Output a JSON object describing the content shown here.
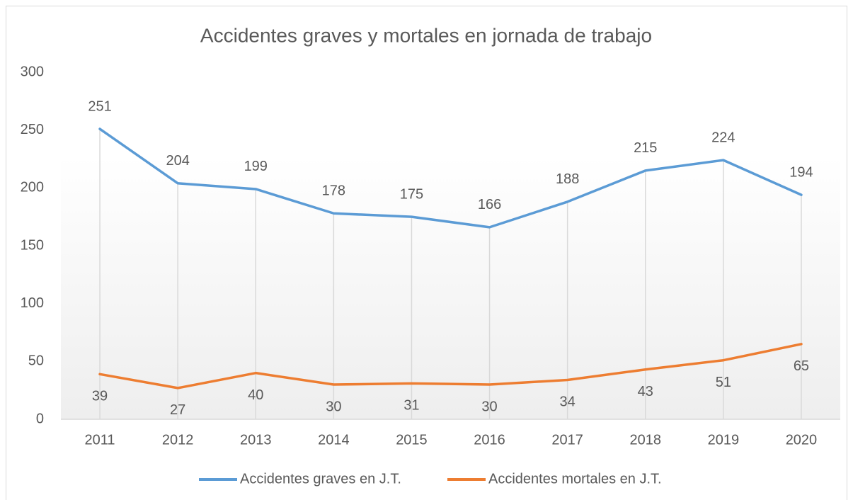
{
  "chart_data": {
    "type": "line",
    "title": "Accidentes graves y mortales en jornada de trabajo",
    "categories": [
      "2011",
      "2012",
      "2013",
      "2014",
      "2015",
      "2016",
      "2017",
      "2018",
      "2019",
      "2020"
    ],
    "series": [
      {
        "name": "Accidentes graves en J.T.",
        "color": "#5b9bd5",
        "values": [
          251,
          204,
          199,
          178,
          175,
          166,
          188,
          215,
          224,
          194
        ]
      },
      {
        "name": "Accidentes mortales en J.T.",
        "color": "#ed7d31",
        "values": [
          39,
          27,
          40,
          30,
          31,
          30,
          34,
          43,
          51,
          65
        ]
      }
    ],
    "ylim": [
      0,
      300
    ],
    "yticks": [
      0,
      50,
      100,
      150,
      200,
      250,
      300
    ],
    "grid": false,
    "drop_lines": true,
    "legend": "bottom"
  }
}
